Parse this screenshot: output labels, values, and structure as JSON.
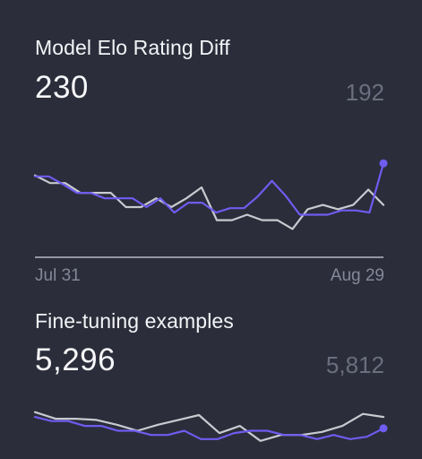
{
  "colors": {
    "background": "#2b2d3a",
    "current_series": "#6f5cf0",
    "previous_series": "#c9cad0",
    "baseline": "#b7b9c2"
  },
  "cards": [
    {
      "title": "Model Elo Rating Diff",
      "value": "230",
      "previous_value": "192",
      "x_start_label": "Jul 31",
      "x_end_label": "Aug 29"
    },
    {
      "title": "Fine-tuning examples",
      "value": "5,296",
      "previous_value": "5,812"
    }
  ],
  "chart_data": [
    {
      "type": "line",
      "title": "Model Elo Rating Diff",
      "x_labels": [
        "Jul 31",
        "Aug 29"
      ],
      "ylim": [
        0,
        100
      ],
      "series": [
        {
          "values": [
            78,
            78,
            71,
            63,
            63,
            58,
            58,
            58,
            50,
            58,
            45,
            54,
            54,
            45,
            49,
            49,
            60,
            74,
            60,
            43,
            43,
            43,
            47,
            47,
            45,
            90
          ]
        },
        {
          "values": [
            79,
            72,
            72,
            63,
            63,
            63,
            50,
            50,
            58,
            50,
            58,
            68,
            38,
            38,
            43,
            38,
            38,
            30,
            48,
            52,
            48,
            52,
            66,
            52
          ]
        }
      ]
    },
    {
      "type": "line",
      "title": "Fine-tuning examples",
      "ylim": [
        0,
        100
      ],
      "series": [
        {
          "values": [
            85,
            78,
            78,
            70,
            70,
            62,
            62,
            55,
            55,
            62,
            48,
            48,
            58,
            62,
            62,
            55,
            55,
            48,
            55,
            48,
            52,
            66
          ]
        },
        {
          "values": [
            93,
            82,
            82,
            80,
            72,
            62,
            72,
            80,
            88,
            58,
            70,
            45,
            55,
            55,
            60,
            70,
            90,
            85
          ]
        }
      ]
    }
  ]
}
